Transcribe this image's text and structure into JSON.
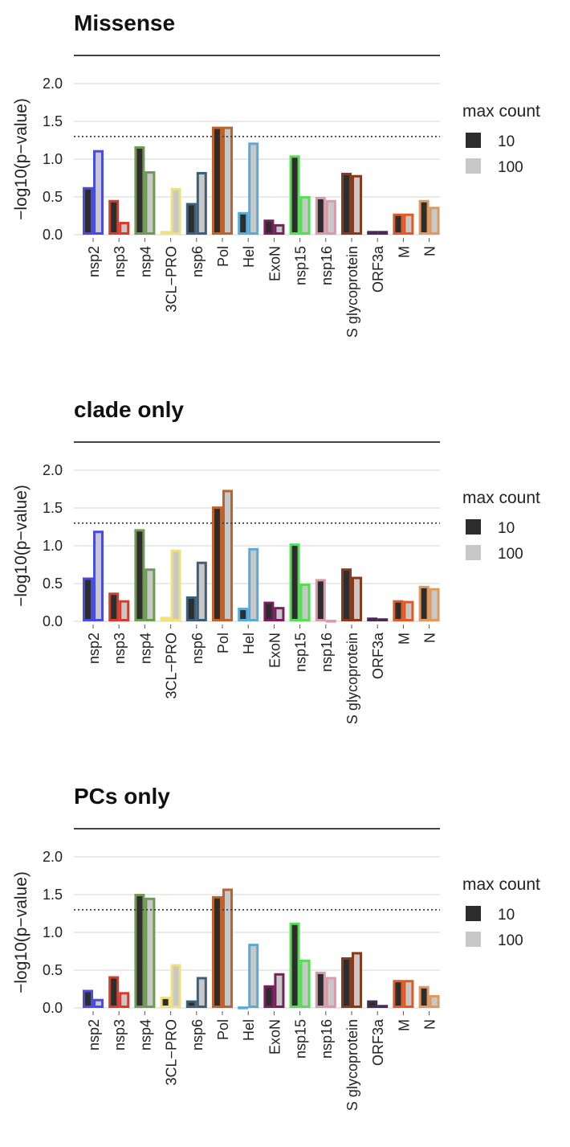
{
  "colors": {
    "fill_max10": "#2d2d2d",
    "fill_max100": "#c8c8c8",
    "grid": "#dddddd",
    "title_rule": "#444444",
    "threshold_line": "#333333"
  },
  "gene_colors": {
    "nsp2": "#4a4ae8",
    "nsp3": "#d93a2b",
    "nsp4": "#6e9a52",
    "3CL-PRO": "#f0e27a",
    "nsp6": "#3c607a",
    "Pol": "#c0622a",
    "Hel": "#5aaad8",
    "ExoN": "#7a1f5e",
    "nsp15": "#55dd55",
    "nsp16": "#d89aaa",
    "S glycoprotein": "#8a3a1a",
    "ORF3a": "#4a2a55",
    "M": "#e05a25",
    "N": "#e09a60"
  },
  "chart_data": [
    {
      "type": "bar",
      "title": "Missense",
      "ylabel": "−log10(p−value)",
      "xlabel": "",
      "ylim": [
        0,
        2.2
      ],
      "yticks": [
        "0.0",
        "0.5",
        "1.0",
        "1.5",
        "2.0"
      ],
      "grid": true,
      "threshold": 1.3,
      "categories": [
        "nsp2",
        "nsp3",
        "nsp4",
        "3CL−PRO",
        "nsp6",
        "Pol",
        "Hel",
        "ExoN",
        "nsp15",
        "nsp16",
        "S glycoprotein",
        "ORF3a",
        "M",
        "N"
      ],
      "series": [
        {
          "name": "10",
          "values": [
            0.63,
            0.46,
            1.17,
            0.05,
            0.42,
            1.43,
            0.3,
            0.2,
            1.05,
            0.5,
            0.82,
            0.05,
            0.28,
            0.46
          ]
        },
        {
          "name": "100",
          "values": [
            1.12,
            0.17,
            0.84,
            0.62,
            0.83,
            1.43,
            1.22,
            0.14,
            0.51,
            0.46,
            0.79,
            0.05,
            0.28,
            0.37
          ]
        }
      ],
      "legend": {
        "title": "max count",
        "position": "right"
      }
    },
    {
      "type": "bar",
      "title": "clade only",
      "ylabel": "−log10(p−value)",
      "xlabel": "",
      "ylim": [
        0,
        2.2
      ],
      "yticks": [
        "0.0",
        "0.5",
        "1.0",
        "1.5",
        "2.0"
      ],
      "grid": true,
      "threshold": 1.3,
      "categories": [
        "nsp2",
        "nsp3",
        "nsp4",
        "3CL−PRO",
        "nsp6",
        "Pol",
        "Hel",
        "ExoN",
        "nsp15",
        "nsp16",
        "S glycoprotein",
        "ORF3a",
        "M",
        "N"
      ],
      "series": [
        {
          "name": "10",
          "values": [
            0.58,
            0.38,
            1.22,
            0.06,
            0.33,
            1.52,
            0.18,
            0.26,
            1.03,
            0.56,
            0.7,
            0.05,
            0.28,
            0.47
          ]
        },
        {
          "name": "100",
          "values": [
            1.2,
            0.28,
            0.7,
            0.95,
            0.79,
            1.74,
            0.97,
            0.19,
            0.5,
            0.02,
            0.59,
            0.04,
            0.27,
            0.44
          ]
        }
      ],
      "legend": {
        "title": "max count",
        "position": "right"
      }
    },
    {
      "type": "bar",
      "title": "PCs only",
      "ylabel": "−log10(p−value)",
      "xlabel": "",
      "ylim": [
        0,
        2.2
      ],
      "yticks": [
        "0.0",
        "0.5",
        "1.0",
        "1.5",
        "2.0"
      ],
      "grid": true,
      "threshold": 1.3,
      "categories": [
        "nsp2",
        "nsp3",
        "nsp4",
        "3CL−PRO",
        "nsp6",
        "Pol",
        "Hel",
        "ExoN",
        "nsp15",
        "nsp16",
        "S glycoprotein",
        "ORF3a",
        "M",
        "N"
      ],
      "series": [
        {
          "name": "10",
          "values": [
            0.24,
            0.42,
            1.51,
            0.15,
            0.1,
            1.48,
            0.02,
            0.3,
            1.13,
            0.48,
            0.67,
            0.1,
            0.37,
            0.29
          ]
        },
        {
          "name": "100",
          "values": [
            0.12,
            0.21,
            1.46,
            0.58,
            0.41,
            1.58,
            0.85,
            0.46,
            0.64,
            0.41,
            0.74,
            0.04,
            0.37,
            0.17
          ]
        }
      ],
      "legend": {
        "title": "max count",
        "position": "right"
      }
    }
  ]
}
